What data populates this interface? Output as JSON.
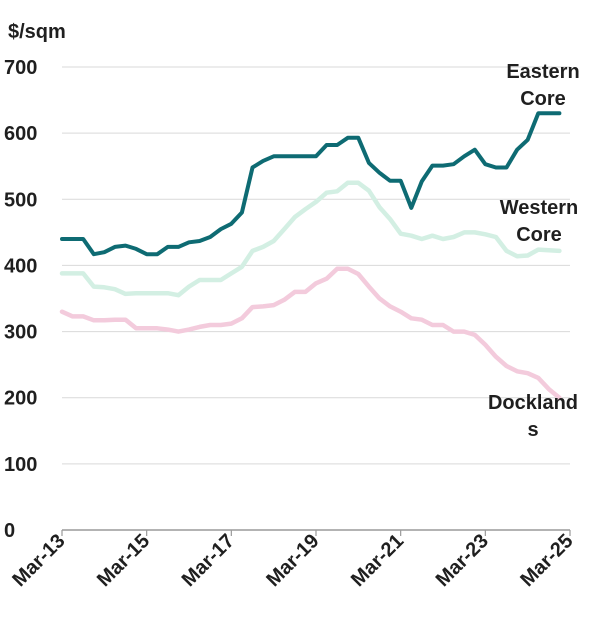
{
  "chart_data": {
    "type": "line",
    "unit_label": "$/sqm",
    "ylim": [
      0,
      700
    ],
    "yticks": [
      "700",
      "600",
      "500",
      "400",
      "300",
      "200",
      "100",
      "0"
    ],
    "xlim": [
      "2013-03",
      "2025-03"
    ],
    "xticks": [
      "Mar-13",
      "Mar-15",
      "Mar-17",
      "Mar-19",
      "Mar-21",
      "Mar-23",
      "Mar-25"
    ],
    "grid": "horizontal",
    "series": [
      {
        "name": "Eastern Core",
        "label_lines": [
          "Eastern",
          "Core"
        ],
        "color": "#0e6b73",
        "points": [
          [
            "2013-03",
            440
          ],
          [
            "2013-09",
            440
          ],
          [
            "2013-12",
            417
          ],
          [
            "2014-03",
            420
          ],
          [
            "2014-06",
            428
          ],
          [
            "2014-09",
            430
          ],
          [
            "2014-12",
            425
          ],
          [
            "2015-03",
            417
          ],
          [
            "2015-06",
            417
          ],
          [
            "2015-09",
            428
          ],
          [
            "2015-12",
            428
          ],
          [
            "2016-03",
            435
          ],
          [
            "2016-06",
            437
          ],
          [
            "2016-09",
            443
          ],
          [
            "2016-12",
            455
          ],
          [
            "2017-03",
            463
          ],
          [
            "2017-06",
            480
          ],
          [
            "2017-09",
            548
          ],
          [
            "2017-12",
            558
          ],
          [
            "2018-03",
            565
          ],
          [
            "2018-06",
            565
          ],
          [
            "2018-09",
            565
          ],
          [
            "2018-12",
            565
          ],
          [
            "2019-03",
            565
          ],
          [
            "2019-06",
            582
          ],
          [
            "2019-09",
            582
          ],
          [
            "2019-12",
            593
          ],
          [
            "2020-03",
            593
          ],
          [
            "2020-06",
            555
          ],
          [
            "2020-09",
            540
          ],
          [
            "2020-12",
            528
          ],
          [
            "2021-03",
            528
          ],
          [
            "2021-06",
            487
          ],
          [
            "2021-09",
            527
          ],
          [
            "2021-12",
            551
          ],
          [
            "2022-03",
            551
          ],
          [
            "2022-06",
            553
          ],
          [
            "2022-09",
            565
          ],
          [
            "2022-12",
            575
          ],
          [
            "2023-03",
            553
          ],
          [
            "2023-06",
            548
          ],
          [
            "2023-09",
            548
          ],
          [
            "2023-12",
            575
          ],
          [
            "2024-03",
            590
          ],
          [
            "2024-06",
            630
          ],
          [
            "2024-12",
            630
          ]
        ]
      },
      {
        "name": "Western Core",
        "label_lines": [
          "Western",
          "Core"
        ],
        "color": "#d3efe3",
        "points": [
          [
            "2013-03",
            388
          ],
          [
            "2013-09",
            388
          ],
          [
            "2013-12",
            368
          ],
          [
            "2014-03",
            367
          ],
          [
            "2014-06",
            364
          ],
          [
            "2014-09",
            357
          ],
          [
            "2014-12",
            358
          ],
          [
            "2015-03",
            358
          ],
          [
            "2015-06",
            358
          ],
          [
            "2015-09",
            358
          ],
          [
            "2015-12",
            355
          ],
          [
            "2016-03",
            368
          ],
          [
            "2016-06",
            378
          ],
          [
            "2016-09",
            378
          ],
          [
            "2016-12",
            378
          ],
          [
            "2017-03",
            388
          ],
          [
            "2017-06",
            398
          ],
          [
            "2017-09",
            422
          ],
          [
            "2017-12",
            428
          ],
          [
            "2018-03",
            437
          ],
          [
            "2018-06",
            455
          ],
          [
            "2018-09",
            473
          ],
          [
            "2018-12",
            485
          ],
          [
            "2019-03",
            496
          ],
          [
            "2019-06",
            510
          ],
          [
            "2019-09",
            512
          ],
          [
            "2019-12",
            525
          ],
          [
            "2020-03",
            525
          ],
          [
            "2020-06",
            513
          ],
          [
            "2020-09",
            488
          ],
          [
            "2020-12",
            470
          ],
          [
            "2021-03",
            448
          ],
          [
            "2021-06",
            445
          ],
          [
            "2021-09",
            440
          ],
          [
            "2021-12",
            445
          ],
          [
            "2022-03",
            440
          ],
          [
            "2022-06",
            443
          ],
          [
            "2022-09",
            450
          ],
          [
            "2022-12",
            450
          ],
          [
            "2023-03",
            447
          ],
          [
            "2023-06",
            443
          ],
          [
            "2023-09",
            422
          ],
          [
            "2023-12",
            414
          ],
          [
            "2024-03",
            415
          ],
          [
            "2024-06",
            424
          ],
          [
            "2024-12",
            422
          ]
        ]
      },
      {
        "name": "Docklands",
        "label_lines": [
          "Dockland",
          "s"
        ],
        "color": "#f3cbdc",
        "points": [
          [
            "2013-03",
            330
          ],
          [
            "2013-06",
            323
          ],
          [
            "2013-09",
            323
          ],
          [
            "2013-12",
            317
          ],
          [
            "2014-03",
            317
          ],
          [
            "2014-06",
            318
          ],
          [
            "2014-09",
            318
          ],
          [
            "2014-12",
            305
          ],
          [
            "2015-03",
            305
          ],
          [
            "2015-06",
            305
          ],
          [
            "2015-09",
            303
          ],
          [
            "2015-12",
            300
          ],
          [
            "2016-03",
            303
          ],
          [
            "2016-06",
            307
          ],
          [
            "2016-09",
            310
          ],
          [
            "2016-12",
            310
          ],
          [
            "2017-03",
            312
          ],
          [
            "2017-06",
            320
          ],
          [
            "2017-09",
            337
          ],
          [
            "2017-12",
            338
          ],
          [
            "2018-03",
            340
          ],
          [
            "2018-06",
            348
          ],
          [
            "2018-09",
            360
          ],
          [
            "2018-12",
            360
          ],
          [
            "2019-03",
            373
          ],
          [
            "2019-06",
            380
          ],
          [
            "2019-09",
            395
          ],
          [
            "2019-12",
            395
          ],
          [
            "2020-03",
            387
          ],
          [
            "2020-06",
            368
          ],
          [
            "2020-09",
            350
          ],
          [
            "2020-12",
            338
          ],
          [
            "2021-03",
            330
          ],
          [
            "2021-06",
            320
          ],
          [
            "2021-09",
            318
          ],
          [
            "2021-12",
            310
          ],
          [
            "2022-03",
            310
          ],
          [
            "2022-06",
            300
          ],
          [
            "2022-09",
            300
          ],
          [
            "2022-12",
            295
          ],
          [
            "2023-03",
            280
          ],
          [
            "2023-06",
            262
          ],
          [
            "2023-09",
            248
          ],
          [
            "2023-12",
            240
          ],
          [
            "2024-03",
            237
          ],
          [
            "2024-06",
            230
          ],
          [
            "2024-09",
            213
          ],
          [
            "2024-12",
            200
          ]
        ]
      }
    ]
  }
}
